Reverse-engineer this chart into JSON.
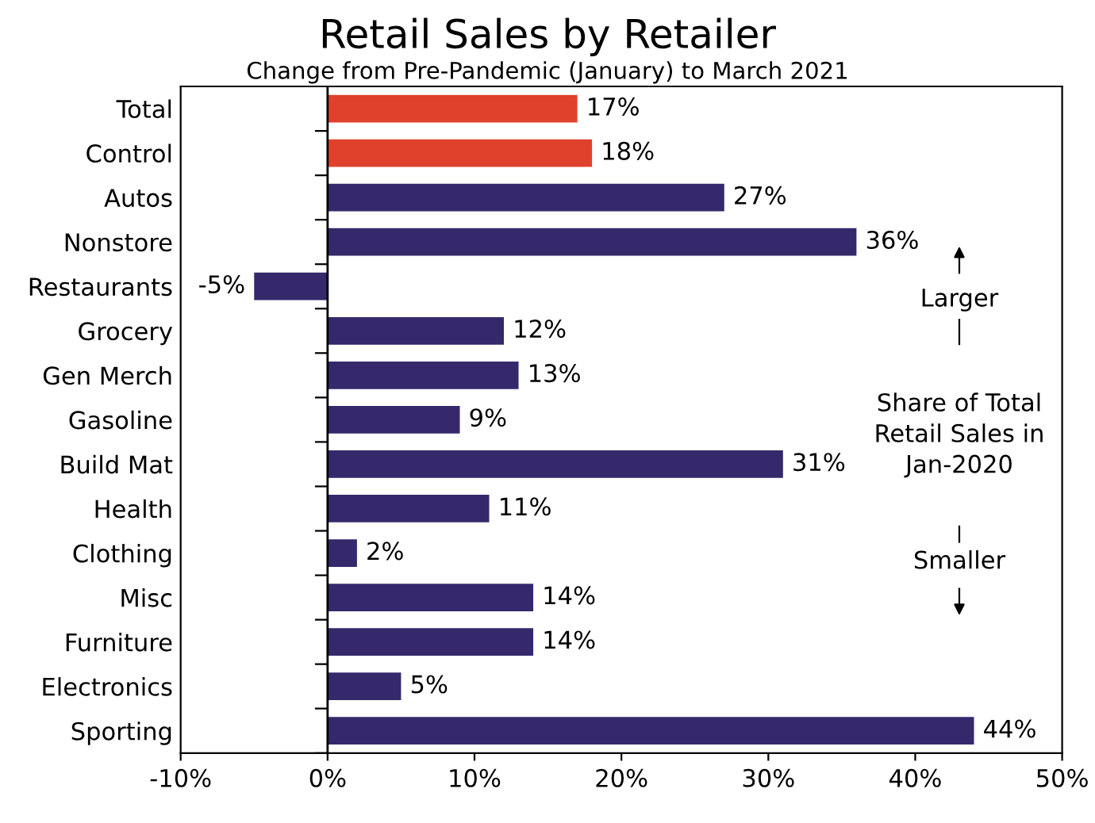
{
  "chart_data": {
    "type": "bar",
    "orientation": "horizontal",
    "title": "Retail Sales by Retailer",
    "subtitle": "Change from Pre-Pandemic (January) to March 2021",
    "categories": [
      "Total",
      "Control",
      "Autos",
      "Nonstore",
      "Restaurants",
      "Grocery",
      "Gen Merch",
      "Gasoline",
      "Build Mat",
      "Health",
      "Clothing",
      "Misc",
      "Furniture",
      "Electronics",
      "Sporting"
    ],
    "values": [
      17,
      18,
      27,
      36,
      -5,
      12,
      13,
      9,
      31,
      11,
      2,
      14,
      14,
      5,
      44
    ],
    "colors": [
      "#e0412c",
      "#e0412c",
      "#35296b",
      "#35296b",
      "#35296b",
      "#35296b",
      "#35296b",
      "#35296b",
      "#35296b",
      "#35296b",
      "#35296b",
      "#35296b",
      "#35296b",
      "#35296b",
      "#35296b"
    ],
    "value_labels": [
      "17%",
      "18%",
      "27%",
      "36%",
      "-5%",
      "12%",
      "13%",
      "9%",
      "31%",
      "11%",
      "2%",
      "14%",
      "14%",
      "5%",
      "44%"
    ],
    "xlim": [
      -10,
      50
    ],
    "xticks": [
      {
        "value": -10,
        "label": "-10%"
      },
      {
        "value": 0,
        "label": "0%"
      },
      {
        "value": 10,
        "label": "10%"
      },
      {
        "value": 20,
        "label": "20%"
      },
      {
        "value": 30,
        "label": "30%"
      },
      {
        "value": 40,
        "label": "40%"
      },
      {
        "value": 50,
        "label": "50%"
      }
    ],
    "ref_lines": [
      {
        "axis": "x",
        "value": 0,
        "color": "#000000"
      }
    ],
    "annotations": [
      "Larger",
      "Share of Total\nRetail Sales in\nJan-2020",
      "Smaller"
    ],
    "grid": false,
    "legend": false
  }
}
